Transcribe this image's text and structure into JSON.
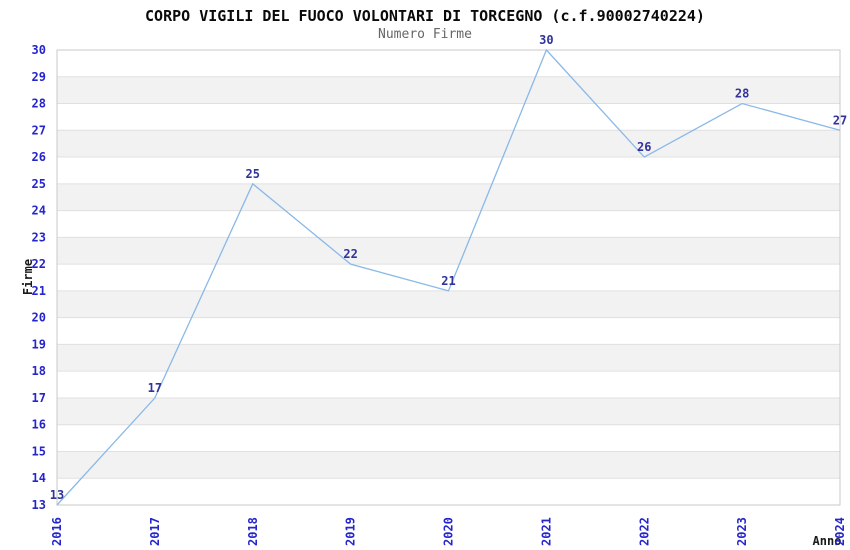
{
  "chart_data": {
    "type": "line",
    "title": "CORPO VIGILI DEL FUOCO VOLONTARI DI TORCEGNO (c.f.90002740224)",
    "subtitle": "Numero Firme",
    "xlabel": "Anno",
    "ylabel": "Firme",
    "categories": [
      "2016",
      "2017",
      "2018",
      "2019",
      "2020",
      "2021",
      "2022",
      "2023",
      "2024"
    ],
    "values": [
      13,
      17,
      25,
      22,
      21,
      30,
      26,
      28,
      27
    ],
    "ylim": [
      13,
      30
    ],
    "ytick_step": 1,
    "grid": "horizontal",
    "banding": "alternating-rows",
    "legend": "none",
    "point_labels_visible": true,
    "colors": {
      "background": "#ffffff",
      "line": "#8ab9e8",
      "tick_label": "#2525cc",
      "point_label": "#32329b",
      "band": "#f2f2f3",
      "gridline": "#e0e0e0",
      "border": "#c9c9c9",
      "title": "#0a0a0a",
      "subtitle": "#666666",
      "axis_label": "#1a1a1a"
    }
  }
}
